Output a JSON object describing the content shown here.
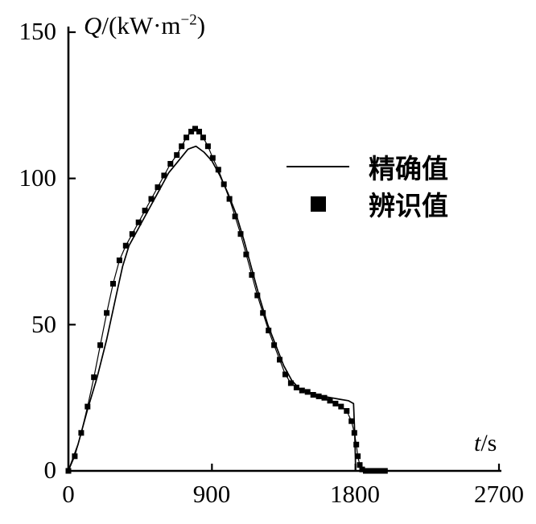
{
  "figure": {
    "ylabel_symbol": "Q",
    "ylabel_unit_prefix": "/(kW·m",
    "ylabel_exponent": "−2",
    "ylabel_unit_suffix": ")",
    "xlabel_symbol": "t",
    "xlabel_unit": "/s"
  },
  "legend": {
    "exact": "精确值",
    "identified": "辨识值"
  },
  "colors": {
    "axis": "#000000",
    "series": "#000000",
    "background": "#ffffff"
  },
  "chart_data": {
    "type": "line",
    "title": "",
    "xlabel": "t/s",
    "ylabel": "Q/(kW·m−2)",
    "xlim": [
      0,
      2700
    ],
    "ylim": [
      0,
      150
    ],
    "x_ticks": [
      0,
      900,
      1800,
      2700
    ],
    "y_ticks": [
      0,
      50,
      100,
      150
    ],
    "grid": false,
    "legend_position": "center-right",
    "series": [
      {
        "name": "精确值",
        "style": "line",
        "color": "#000000",
        "points": [
          [
            0,
            0
          ],
          [
            60,
            9
          ],
          [
            120,
            21
          ],
          [
            180,
            32
          ],
          [
            240,
            45
          ],
          [
            300,
            60
          ],
          [
            340,
            70
          ],
          [
            380,
            77
          ],
          [
            430,
            82
          ],
          [
            480,
            87
          ],
          [
            530,
            92
          ],
          [
            580,
            97
          ],
          [
            630,
            102
          ],
          [
            690,
            106
          ],
          [
            750,
            110
          ],
          [
            800,
            111
          ],
          [
            850,
            109
          ],
          [
            900,
            106
          ],
          [
            950,
            101
          ],
          [
            1000,
            95
          ],
          [
            1050,
            88
          ],
          [
            1100,
            79
          ],
          [
            1150,
            69
          ],
          [
            1200,
            59
          ],
          [
            1250,
            50
          ],
          [
            1300,
            43
          ],
          [
            1350,
            36
          ],
          [
            1400,
            31
          ],
          [
            1450,
            28
          ],
          [
            1500,
            27
          ],
          [
            1550,
            26
          ],
          [
            1600,
            25.5
          ],
          [
            1650,
            25
          ],
          [
            1700,
            24.5
          ],
          [
            1755,
            24
          ],
          [
            1788,
            23
          ],
          [
            1796,
            12
          ],
          [
            1801,
            0
          ],
          [
            1818,
            0
          ]
        ]
      },
      {
        "name": "辨识值",
        "style": "square-markers",
        "color": "#000000",
        "marker_size": 7,
        "points": [
          [
            0,
            0
          ],
          [
            40,
            5
          ],
          [
            80,
            13
          ],
          [
            120,
            22
          ],
          [
            160,
            32
          ],
          [
            200,
            43
          ],
          [
            240,
            54
          ],
          [
            280,
            64
          ],
          [
            320,
            72
          ],
          [
            360,
            77
          ],
          [
            400,
            81
          ],
          [
            440,
            85
          ],
          [
            480,
            89
          ],
          [
            520,
            93
          ],
          [
            560,
            97
          ],
          [
            600,
            101
          ],
          [
            640,
            105
          ],
          [
            680,
            108
          ],
          [
            710,
            111
          ],
          [
            740,
            114
          ],
          [
            770,
            116
          ],
          [
            795,
            117
          ],
          [
            820,
            116
          ],
          [
            845,
            114
          ],
          [
            875,
            111
          ],
          [
            905,
            107
          ],
          [
            940,
            103
          ],
          [
            975,
            98
          ],
          [
            1010,
            93
          ],
          [
            1045,
            87
          ],
          [
            1080,
            81
          ],
          [
            1115,
            74
          ],
          [
            1150,
            67
          ],
          [
            1185,
            60
          ],
          [
            1220,
            54
          ],
          [
            1255,
            48
          ],
          [
            1290,
            43
          ],
          [
            1325,
            38
          ],
          [
            1360,
            33
          ],
          [
            1395,
            30
          ],
          [
            1430,
            28.5
          ],
          [
            1465,
            27.5
          ],
          [
            1500,
            27
          ],
          [
            1535,
            26
          ],
          [
            1570,
            25.5
          ],
          [
            1605,
            25
          ],
          [
            1640,
            24
          ],
          [
            1675,
            23
          ],
          [
            1710,
            22
          ],
          [
            1745,
            20.5
          ],
          [
            1775,
            17
          ],
          [
            1793,
            13
          ],
          [
            1805,
            9
          ],
          [
            1815,
            5
          ],
          [
            1827,
            2
          ],
          [
            1842,
            0.5
          ],
          [
            1865,
            0
          ],
          [
            1895,
            0
          ],
          [
            1925,
            0
          ],
          [
            1955,
            0
          ],
          [
            1985,
            0
          ]
        ]
      }
    ]
  }
}
